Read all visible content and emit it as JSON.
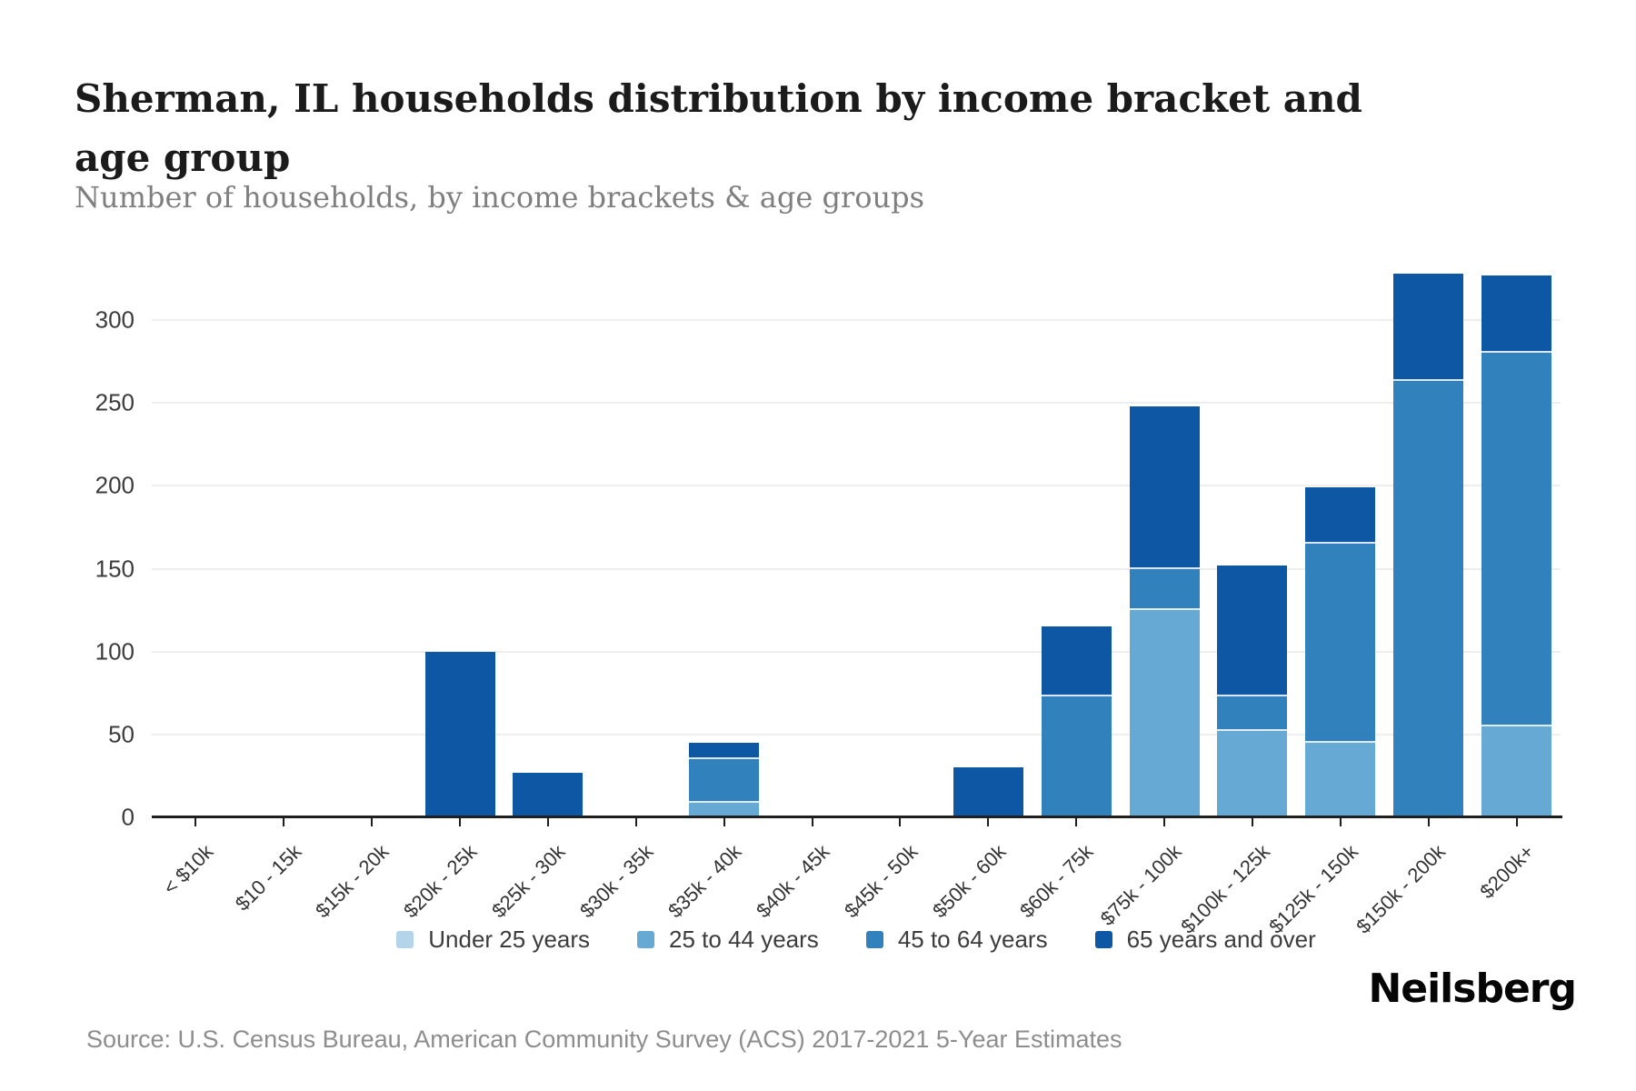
{
  "header": {
    "title": "Sherman, IL households distribution by income bracket and age group",
    "subtitle": "Number of households, by income brackets & age groups"
  },
  "footer": {
    "source": "Source: U.S. Census Bureau, American Community Survey (ACS) 2017-2021 5-Year Estimates",
    "brand": "Neilsberg"
  },
  "colors": {
    "under_25": "#b3d4e9",
    "age_25_44": "#66a9d4",
    "age_45_64": "#3181bd",
    "age_65_over": "#0e57a5",
    "gridline": "#eeeeee",
    "axis": "#1f1f1f",
    "title_text": "#1b1b1b",
    "subtitle_text": "#7f7f7f",
    "source_text": "#8d8d8d"
  },
  "chart_data": {
    "type": "bar",
    "stacked": true,
    "title": "Sherman, IL households distribution by income bracket and age group",
    "xlabel": "",
    "ylabel": "",
    "ylim": [
      0,
      300
    ],
    "yticks": [
      0,
      50,
      100,
      150,
      200,
      250,
      300
    ],
    "grid": "horizontal",
    "legend_position": "bottom",
    "categories": [
      "< $10k",
      "$10 - 15k",
      "$15k - 20k",
      "$20k - 25k",
      "$25k - 30k",
      "$30k - 35k",
      "$35k - 40k",
      "$40k - 45k",
      "$45k - 50k",
      "$50k - 60k",
      "$60k - 75k",
      "$75k - 100k",
      "$100k - 125k",
      "$125k - 150k",
      "$150k - 200k",
      "$200k+"
    ],
    "series": [
      {
        "name": "Under 25 years",
        "color": "#b3d4e9",
        "values": [
          0,
          0,
          0,
          0,
          0,
          0,
          0,
          0,
          0,
          0,
          0,
          0,
          0,
          0,
          0,
          0
        ]
      },
      {
        "name": "25 to 44 years",
        "color": "#66a9d4",
        "values": [
          0,
          0,
          0,
          0,
          0,
          0,
          9,
          0,
          0,
          0,
          0,
          125,
          52,
          45,
          0,
          55
        ]
      },
      {
        "name": "45 to 64 years",
        "color": "#3181bd",
        "values": [
          0,
          0,
          0,
          0,
          0,
          0,
          26,
          0,
          0,
          0,
          73,
          25,
          21,
          120,
          263,
          225
        ]
      },
      {
        "name": "65 years and over",
        "color": "#0e57a5",
        "values": [
          0,
          0,
          0,
          100,
          27,
          0,
          10,
          0,
          0,
          30,
          42,
          98,
          79,
          34,
          65,
          47
        ]
      }
    ],
    "totals": [
      0,
      0,
      0,
      100,
      27,
      0,
      45,
      0,
      0,
      30,
      115,
      248,
      152,
      199,
      328,
      327
    ]
  }
}
